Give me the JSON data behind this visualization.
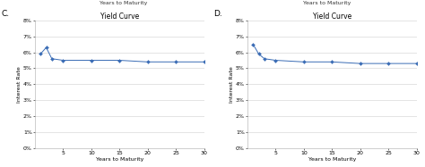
{
  "chart_C": {
    "title": "Yield Curve",
    "label": "C.",
    "x": [
      1,
      2,
      3,
      5,
      10,
      15,
      20,
      25,
      30
    ],
    "y": [
      0.059,
      0.063,
      0.056,
      0.055,
      0.055,
      0.055,
      0.054,
      0.054,
      0.054
    ],
    "xlabel": "Years to Maturity",
    "ylabel": "Interest Rate",
    "ylim": [
      0.0,
      0.08
    ],
    "yticks": [
      0.0,
      0.01,
      0.02,
      0.03,
      0.04,
      0.05,
      0.06,
      0.07,
      0.08
    ],
    "xticks": [
      5,
      10,
      15,
      20,
      25,
      30
    ],
    "line_color": "#3A6CB5",
    "marker": "D",
    "marker_size": 2.0
  },
  "chart_D": {
    "title": "Yield Curve",
    "label": "D.",
    "x": [
      1,
      2,
      3,
      5,
      10,
      15,
      20,
      25,
      30
    ],
    "y": [
      0.065,
      0.059,
      0.056,
      0.055,
      0.054,
      0.054,
      0.053,
      0.053,
      0.053
    ],
    "xlabel": "Years to Maturity",
    "ylabel": "Interest Rate",
    "ylim": [
      0.0,
      0.08
    ],
    "yticks": [
      0.0,
      0.01,
      0.02,
      0.03,
      0.04,
      0.05,
      0.06,
      0.07,
      0.08
    ],
    "xticks": [
      5,
      10,
      15,
      20,
      25,
      30
    ],
    "line_color": "#3A6CB5",
    "marker": "D",
    "marker_size": 2.0
  },
  "top_label": "Years to Maturity",
  "bg_color": "#ffffff",
  "grid_color": "#d0d0d0",
  "font_size_title": 5.5,
  "font_size_corner_label": 6.5,
  "font_size_tick": 4.5,
  "font_size_axis_label": 4.5
}
